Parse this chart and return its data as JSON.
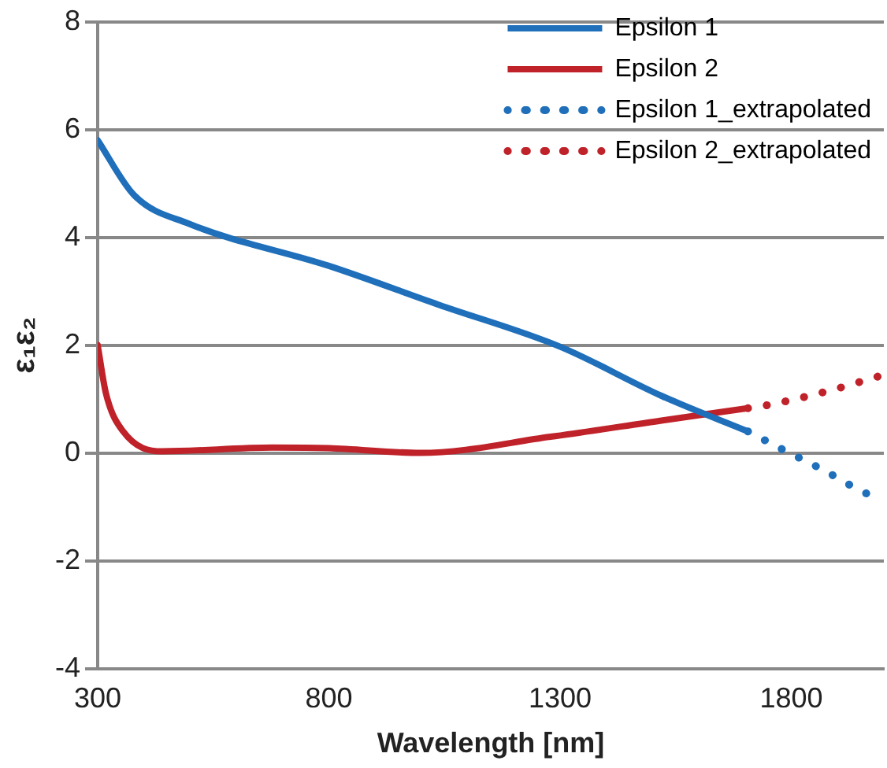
{
  "chart_data": {
    "type": "line",
    "xlabel": "Wavelength [nm]",
    "ylabel": "ε₁ε₂",
    "xlim": [
      300,
      2000
    ],
    "xticks": [
      300,
      800,
      1300,
      1800
    ],
    "ylim": [
      -4,
      8
    ],
    "yticks": [
      -4,
      -2,
      0,
      2,
      4,
      6,
      8
    ],
    "grid": "y",
    "legend": "top right",
    "marker": "none",
    "series": [
      {
        "name": "Epsilon 1",
        "color": "#1f6fba",
        "line_style": "solid",
        "x": [
          300,
          379,
          498,
          800,
          1037,
          1300,
          1519,
          1706
        ],
        "values": [
          5.8,
          4.78,
          4.25,
          3.47,
          2.75,
          1.97,
          1.06,
          0.4
        ]
      },
      {
        "name": "Epsilon 2",
        "color": "#c0222a",
        "line_style": "solid",
        "x": [
          300,
          318,
          355,
          440,
          678,
          800,
          998,
          1279,
          1519,
          1706
        ],
        "values": [
          2.0,
          1.1,
          0.4,
          0.03,
          0.1,
          0.09,
          0.0,
          0.3,
          0.6,
          0.83
        ]
      },
      {
        "name": "Epsilon 1_extrapolated",
        "color": "#1f6fba",
        "line_style": "dotted",
        "x": [
          1706,
          1782,
          1861,
          1976,
          2000
        ],
        "values": [
          0.4,
          0.06,
          -0.28,
          -0.8,
          -0.85
        ]
      },
      {
        "name": "Epsilon 2_extrapolated",
        "color": "#c0222a",
        "line_style": "dotted",
        "x": [
          1706,
          1744,
          1880,
          2000
        ],
        "values": [
          0.83,
          0.88,
          1.15,
          1.45
        ]
      }
    ]
  }
}
